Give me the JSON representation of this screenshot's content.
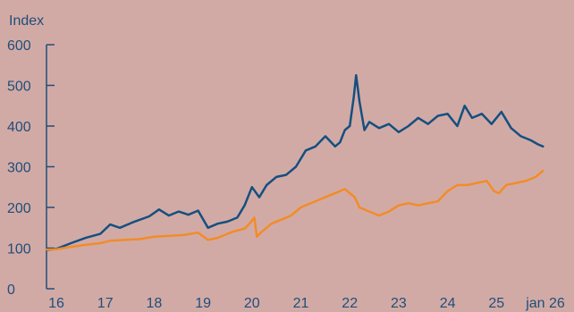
{
  "chart_data": {
    "type": "line",
    "ylabel": "Index",
    "ylim": [
      0,
      600
    ],
    "yticks": [
      0,
      100,
      200,
      300,
      400,
      500,
      600
    ],
    "xlim": [
      2016.0,
      2026.0
    ],
    "xticks": [
      {
        "value": 2016,
        "label": "16"
      },
      {
        "value": 2017,
        "label": "17"
      },
      {
        "value": 2018,
        "label": "18"
      },
      {
        "value": 2019,
        "label": "19"
      },
      {
        "value": 2020,
        "label": "20"
      },
      {
        "value": 2021,
        "label": "21"
      },
      {
        "value": 2022,
        "label": "22"
      },
      {
        "value": 2023,
        "label": "23"
      },
      {
        "value": 2024,
        "label": "24"
      },
      {
        "value": 2025,
        "label": "25"
      },
      {
        "value": 2026,
        "label": "jan 26"
      }
    ],
    "grid": false,
    "legend": "none",
    "series": [
      {
        "color": "#154f80",
        "points": [
          [
            2015.8,
            95
          ],
          [
            2016.0,
            98
          ],
          [
            2016.3,
            112
          ],
          [
            2016.6,
            125
          ],
          [
            2016.9,
            135
          ],
          [
            2017.1,
            158
          ],
          [
            2017.3,
            150
          ],
          [
            2017.6,
            165
          ],
          [
            2017.9,
            178
          ],
          [
            2018.1,
            195
          ],
          [
            2018.3,
            180
          ],
          [
            2018.5,
            190
          ],
          [
            2018.7,
            182
          ],
          [
            2018.9,
            192
          ],
          [
            2019.1,
            150
          ],
          [
            2019.3,
            160
          ],
          [
            2019.5,
            165
          ],
          [
            2019.7,
            175
          ],
          [
            2019.85,
            205
          ],
          [
            2020.0,
            250
          ],
          [
            2020.15,
            225
          ],
          [
            2020.3,
            255
          ],
          [
            2020.5,
            275
          ],
          [
            2020.7,
            280
          ],
          [
            2020.9,
            300
          ],
          [
            2021.1,
            340
          ],
          [
            2021.3,
            350
          ],
          [
            2021.5,
            375
          ],
          [
            2021.7,
            350
          ],
          [
            2021.8,
            360
          ],
          [
            2021.9,
            390
          ],
          [
            2022.0,
            400
          ],
          [
            2022.08,
            470
          ],
          [
            2022.13,
            525
          ],
          [
            2022.2,
            460
          ],
          [
            2022.3,
            390
          ],
          [
            2022.4,
            410
          ],
          [
            2022.6,
            395
          ],
          [
            2022.8,
            405
          ],
          [
            2023.0,
            385
          ],
          [
            2023.2,
            400
          ],
          [
            2023.4,
            420
          ],
          [
            2023.6,
            405
          ],
          [
            2023.8,
            425
          ],
          [
            2024.0,
            430
          ],
          [
            2024.2,
            400
          ],
          [
            2024.35,
            450
          ],
          [
            2024.5,
            420
          ],
          [
            2024.7,
            430
          ],
          [
            2024.9,
            405
          ],
          [
            2025.1,
            435
          ],
          [
            2025.3,
            395
          ],
          [
            2025.5,
            375
          ],
          [
            2025.7,
            365
          ],
          [
            2025.85,
            355
          ],
          [
            2025.95,
            350
          ]
        ]
      },
      {
        "color": "#f28c28",
        "points": [
          [
            2015.8,
            96
          ],
          [
            2016.0,
            97
          ],
          [
            2016.3,
            103
          ],
          [
            2016.6,
            108
          ],
          [
            2016.9,
            112
          ],
          [
            2017.1,
            118
          ],
          [
            2017.4,
            120
          ],
          [
            2017.7,
            122
          ],
          [
            2018.0,
            128
          ],
          [
            2018.3,
            130
          ],
          [
            2018.6,
            132
          ],
          [
            2018.9,
            138
          ],
          [
            2019.1,
            120
          ],
          [
            2019.3,
            125
          ],
          [
            2019.6,
            140
          ],
          [
            2019.85,
            148
          ],
          [
            2019.95,
            160
          ],
          [
            2020.05,
            175
          ],
          [
            2020.1,
            128
          ],
          [
            2020.2,
            140
          ],
          [
            2020.4,
            160
          ],
          [
            2020.6,
            170
          ],
          [
            2020.8,
            180
          ],
          [
            2021.0,
            200
          ],
          [
            2021.2,
            210
          ],
          [
            2021.4,
            220
          ],
          [
            2021.6,
            230
          ],
          [
            2021.8,
            240
          ],
          [
            2021.9,
            245
          ],
          [
            2022.1,
            225
          ],
          [
            2022.2,
            200
          ],
          [
            2022.4,
            190
          ],
          [
            2022.6,
            180
          ],
          [
            2022.8,
            190
          ],
          [
            2023.0,
            205
          ],
          [
            2023.2,
            210
          ],
          [
            2023.4,
            205
          ],
          [
            2023.6,
            210
          ],
          [
            2023.8,
            215
          ],
          [
            2024.0,
            240
          ],
          [
            2024.2,
            255
          ],
          [
            2024.4,
            255
          ],
          [
            2024.6,
            260
          ],
          [
            2024.8,
            265
          ],
          [
            2024.95,
            240
          ],
          [
            2025.05,
            235
          ],
          [
            2025.2,
            255
          ],
          [
            2025.4,
            260
          ],
          [
            2025.6,
            265
          ],
          [
            2025.8,
            275
          ],
          [
            2025.95,
            290
          ]
        ]
      }
    ]
  }
}
